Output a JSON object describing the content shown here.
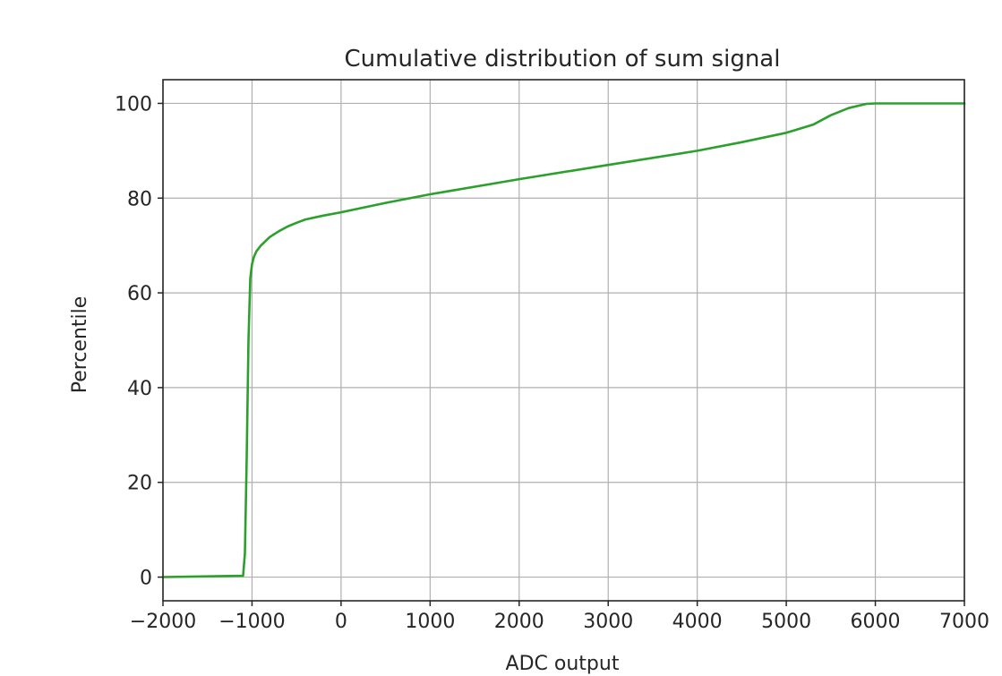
{
  "chart_data": {
    "type": "line",
    "title": "Cumulative distribution of sum signal",
    "xlabel": "ADC output",
    "ylabel": "Percentile",
    "xlim": [
      -2000,
      7000
    ],
    "ylim": [
      -5,
      105
    ],
    "xticks": [
      -2000,
      -1000,
      0,
      1000,
      2000,
      3000,
      4000,
      5000,
      6000,
      7000
    ],
    "xtick_labels": [
      "−2000",
      "−1000",
      "0",
      "1000",
      "2000",
      "3000",
      "4000",
      "5000",
      "6000",
      "7000"
    ],
    "yticks": [
      0,
      20,
      40,
      60,
      80,
      100
    ],
    "ytick_labels": [
      "0",
      "20",
      "40",
      "60",
      "80",
      "100"
    ],
    "grid": true,
    "series": [
      {
        "color": "#2ca02c",
        "x": [
          -2000,
          -1100,
          -1080,
          -1060,
          -1040,
          -1020,
          -1000,
          -980,
          -950,
          -900,
          -800,
          -700,
          -600,
          -500,
          -400,
          -200,
          0,
          500,
          1000,
          2000,
          3000,
          4000,
          4500,
          5000,
          5300,
          5500,
          5700,
          5900,
          6000,
          7000
        ],
        "y": [
          0,
          0.3,
          5,
          25,
          50,
          63,
          66,
          67.5,
          68.8,
          70,
          71.8,
          73,
          74,
          74.8,
          75.5,
          76.3,
          77,
          79,
          80.8,
          84,
          87,
          90,
          91.8,
          93.8,
          95.5,
          97.5,
          99,
          99.9,
          100,
          100
        ]
      }
    ]
  }
}
